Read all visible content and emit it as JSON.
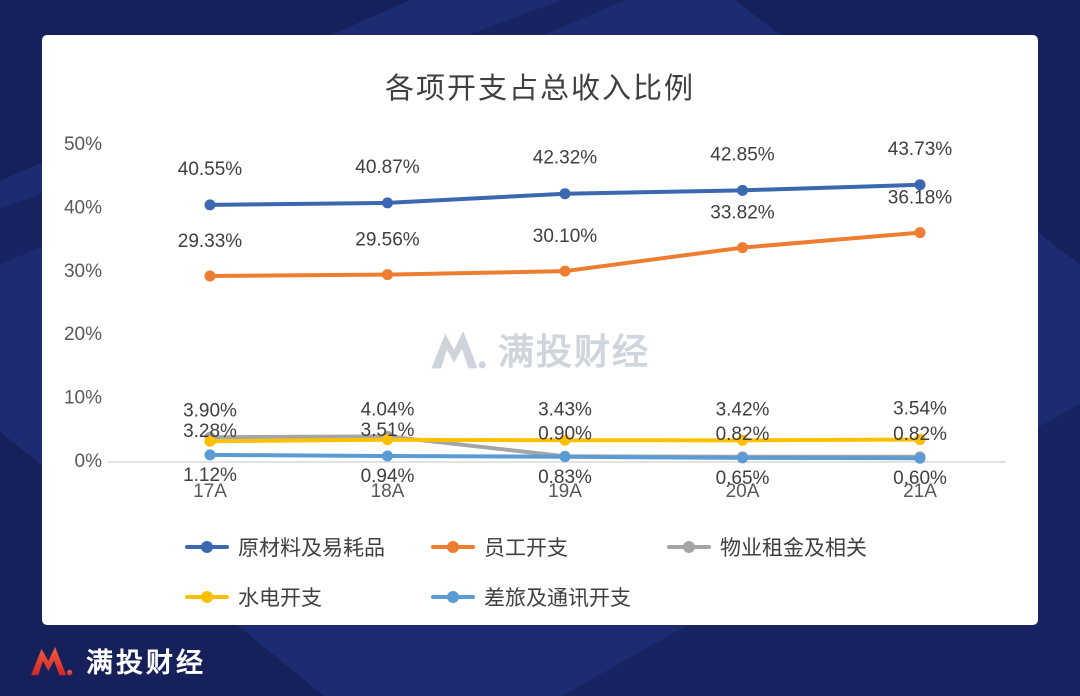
{
  "watermark": {
    "brand": "满投财经"
  },
  "footer": {
    "brand": "满投财经"
  },
  "chart_data": {
    "type": "line",
    "title": "各项开支占总收入比例",
    "categories": [
      "17A",
      "18A",
      "19A",
      "20A",
      "21A"
    ],
    "xlabel": "",
    "ylabel": "",
    "ylim": [
      0,
      50
    ],
    "grid": false,
    "legend_position": "bottom",
    "y_tick_labels": [
      "50%",
      "40%",
      "30%",
      "20%",
      "10%",
      "0%"
    ],
    "y_tick_values": [
      50,
      40,
      30,
      20,
      10,
      0
    ],
    "series": [
      {
        "name": "原材料及易耗品",
        "color": "#3B68B0",
        "values": [
          40.55,
          40.87,
          42.32,
          42.85,
          43.73
        ],
        "labels": [
          "40.55%",
          "40.87%",
          "42.32%",
          "42.85%",
          "43.73%"
        ]
      },
      {
        "name": "员工开支",
        "color": "#ED7D31",
        "values": [
          29.33,
          29.56,
          30.1,
          33.82,
          36.18
        ],
        "labels": [
          "29.33%",
          "29.56%",
          "30.10%",
          "33.82%",
          "36.18%"
        ]
      },
      {
        "name": "物业租金及相关",
        "color": "#A5A5A5",
        "values": [
          3.9,
          4.04,
          0.9,
          0.82,
          0.82
        ],
        "labels": [
          "3.90%",
          "4.04%",
          "0.90%",
          "0.82%",
          "0.82%"
        ]
      },
      {
        "name": "水电开支",
        "color": "#FFC000",
        "values": [
          3.28,
          3.51,
          3.43,
          3.42,
          3.54
        ],
        "labels": [
          "3.28%",
          "3.51%",
          "3.43%",
          "3.42%",
          "3.54%"
        ]
      },
      {
        "name": "差旅及通讯开支",
        "color": "#5B9BD5",
        "values": [
          1.12,
          0.94,
          0.83,
          0.65,
          0.6
        ],
        "labels": [
          "1.12%",
          "0.94%",
          "0.83%",
          "0.65%",
          "0.60%"
        ]
      }
    ]
  }
}
